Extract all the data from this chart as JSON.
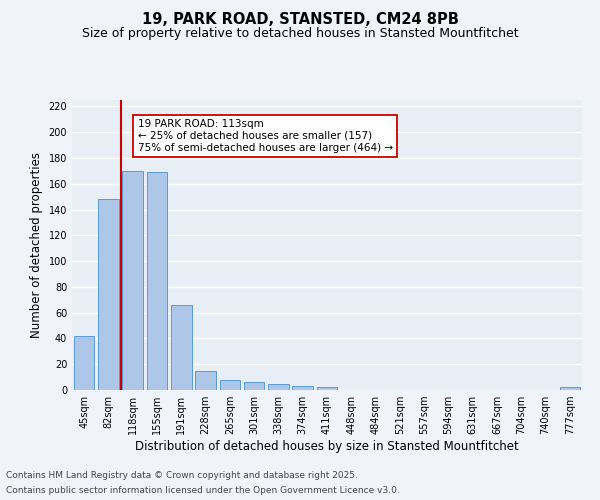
{
  "title": "19, PARK ROAD, STANSTED, CM24 8PB",
  "subtitle": "Size of property relative to detached houses in Stansted Mountfitchet",
  "xlabel": "Distribution of detached houses by size in Stansted Mountfitchet",
  "ylabel": "Number of detached properties",
  "categories": [
    "45sqm",
    "82sqm",
    "118sqm",
    "155sqm",
    "191sqm",
    "228sqm",
    "265sqm",
    "301sqm",
    "338sqm",
    "374sqm",
    "411sqm",
    "448sqm",
    "484sqm",
    "521sqm",
    "557sqm",
    "594sqm",
    "631sqm",
    "667sqm",
    "704sqm",
    "740sqm",
    "777sqm"
  ],
  "values": [
    42,
    148,
    170,
    169,
    66,
    15,
    8,
    6,
    5,
    3,
    2,
    0,
    0,
    0,
    0,
    0,
    0,
    0,
    0,
    0,
    2
  ],
  "bar_color": "#aec6e8",
  "bar_edge_color": "#5b9bd5",
  "background_color": "#e8eef6",
  "fig_background_color": "#f0f4fa",
  "grid_color": "#ffffff",
  "vline_x_index": 1.5,
  "vline_color": "#cc0000",
  "annotation_text": "19 PARK ROAD: 113sqm\n← 25% of detached houses are smaller (157)\n75% of semi-detached houses are larger (464) →",
  "annotation_box_color": "#cc0000",
  "ylim": [
    0,
    225
  ],
  "yticks": [
    0,
    20,
    40,
    60,
    80,
    100,
    120,
    140,
    160,
    180,
    200,
    220
  ],
  "footer_line1": "Contains HM Land Registry data © Crown copyright and database right 2025.",
  "footer_line2": "Contains public sector information licensed under the Open Government Licence v3.0.",
  "title_fontsize": 10.5,
  "subtitle_fontsize": 9,
  "axis_label_fontsize": 8.5,
  "tick_fontsize": 7,
  "annotation_fontsize": 7.5,
  "footer_fontsize": 6.5
}
